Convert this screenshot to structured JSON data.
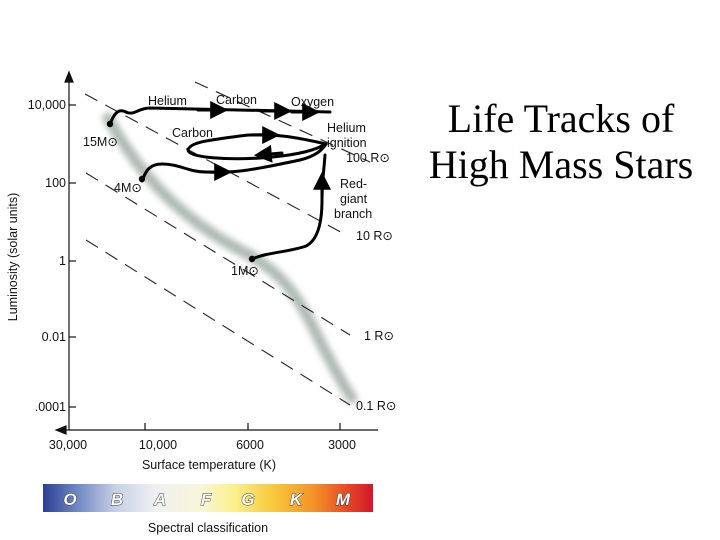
{
  "title": {
    "line1": "Life Tracks of",
    "line2": "High Mass Stars"
  },
  "diagram": {
    "y_axis_label": "Luminosity (solar units)",
    "x_axis_label": "Surface temperature (K)",
    "y_ticks": [
      "10,000",
      "100",
      "1",
      "0.01",
      ".0001"
    ],
    "x_ticks": [
      "30,000",
      "10,000",
      "6000",
      "3000"
    ],
    "radius_lines": [
      "100 R⊙",
      "10 R⊙",
      "1 R⊙",
      "0.1 R⊙"
    ],
    "stars": [
      "15M⊙",
      "4M⊙",
      "1M⊙"
    ],
    "track_labels": {
      "helium": "Helium",
      "carbon_top": "Carbon",
      "oxygen": "Oxygen",
      "carbon_inner": "Carbon",
      "helium_ignition_1": "Helium",
      "helium_ignition_2": "ignition",
      "red_giant_1": "Red-",
      "red_giant_2": "giant",
      "red_giant_3": "branch"
    },
    "spectral": {
      "label": "Spectral classification",
      "classes": [
        "O",
        "B",
        "A",
        "F",
        "G",
        "K",
        "M"
      ]
    }
  }
}
